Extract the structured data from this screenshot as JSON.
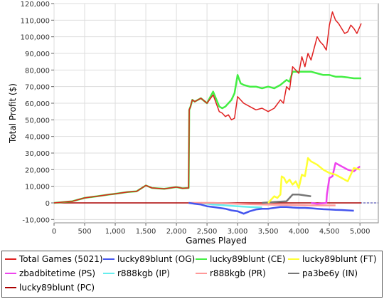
{
  "chart_data": {
    "type": "line",
    "title": "",
    "xlabel": "Games Played",
    "ylabel": "Total Profit ($)",
    "xlim": [
      0,
      5300
    ],
    "ylim": [
      -12000,
      120000
    ],
    "x_ticks": [
      0,
      500,
      1000,
      1500,
      2000,
      2500,
      3000,
      3500,
      4000,
      4500,
      5000
    ],
    "x_tick_labels": [
      "0",
      "500",
      "1,000",
      "1,500",
      "2,000",
      "2,500",
      "3,000",
      "3,500",
      "4,000",
      "4,500",
      "5,000"
    ],
    "y_ticks": [
      -10000,
      0,
      10000,
      20000,
      30000,
      40000,
      50000,
      60000,
      70000,
      80000,
      90000,
      100000,
      110000,
      120000
    ],
    "y_tick_labels": [
      "-10,000",
      "0",
      "10,000",
      "20,000",
      "30,000",
      "40,000",
      "50,000",
      "60,000",
      "70,000",
      "80,000",
      "90,000",
      "100,000",
      "110,000",
      "120,000"
    ],
    "grid": true,
    "zero_line_color": "#3333aa",
    "legend_position": "bottom",
    "series": [
      {
        "name": "Total Games (5021)",
        "color": "#e02020",
        "width": 1,
        "x": [
          0,
          300,
          500,
          700,
          900,
          1000,
          1200,
          1350,
          1500,
          1600,
          1800,
          2000,
          2100,
          2200,
          2210,
          2230,
          2260,
          2300,
          2400,
          2500,
          2600,
          2700,
          2750,
          2800,
          2850,
          2900,
          2950,
          3000,
          3100,
          3200,
          3300,
          3400,
          3500,
          3600,
          3700,
          3750,
          3800,
          3850,
          3900,
          4000,
          4050,
          4100,
          4150,
          4200,
          4250,
          4300,
          4350,
          4400,
          4450,
          4500,
          4550,
          4600,
          4650,
          4700,
          4750,
          4800,
          4850,
          4900,
          4950,
          5021
        ],
        "values": [
          0,
          1000,
          3000,
          4000,
          5000,
          5500,
          6500,
          7000,
          10500,
          9000,
          8500,
          9500,
          8800,
          9000,
          56000,
          58000,
          62000,
          61000,
          63000,
          60000,
          65000,
          55000,
          54000,
          52000,
          53000,
          50000,
          51000,
          64000,
          60000,
          58000,
          56000,
          57000,
          55000,
          57000,
          62000,
          60000,
          70000,
          68000,
          82000,
          78000,
          88000,
          82000,
          90000,
          86000,
          93000,
          100000,
          97000,
          95000,
          92000,
          107000,
          115000,
          110000,
          108000,
          105000,
          102000,
          103000,
          107000,
          105000,
          102000,
          108000
        ]
      },
      {
        "name": "lucky89blunt (OG)",
        "color": "#4455ee",
        "width": 2,
        "x": [
          2200,
          2300,
          2400,
          2500,
          2600,
          2700,
          2800,
          2900,
          3000,
          3100,
          3200,
          3300,
          3400,
          3500,
          3600,
          3700,
          3800,
          3900,
          4000,
          4100,
          4200,
          4300,
          4400,
          4500,
          4600,
          4700,
          4800,
          4900
        ],
        "values": [
          0,
          -500,
          -1000,
          -2000,
          -2500,
          -3000,
          -3500,
          -4500,
          -5000,
          -6500,
          -5000,
          -4000,
          -3500,
          -3500,
          -3000,
          -2500,
          -2500,
          -2800,
          -3000,
          -3000,
          -3200,
          -3500,
          -3800,
          -4000,
          -4200,
          -4300,
          -4500,
          -4700
        ]
      },
      {
        "name": "lucky89blunt (CE)",
        "color": "#44ee44",
        "width": 2,
        "x": [
          0,
          300,
          500,
          700,
          900,
          1000,
          1200,
          1350,
          1500,
          1600,
          1800,
          2000,
          2100,
          2200,
          2210,
          2230,
          2260,
          2300,
          2400,
          2500,
          2600,
          2700,
          2750,
          2800,
          2850,
          2900,
          2950,
          3000,
          3050,
          3100,
          3200,
          3300,
          3400,
          3500,
          3600,
          3700,
          3800,
          3850,
          3900,
          4000,
          4100,
          4200,
          4300,
          4400,
          4500,
          4600,
          4700,
          4800,
          4900,
          5021
        ],
        "values": [
          0,
          1000,
          3000,
          4000,
          5000,
          5500,
          6500,
          7000,
          10500,
          9000,
          8500,
          9500,
          8800,
          9000,
          56000,
          58000,
          62000,
          61000,
          63000,
          60000,
          67000,
          58000,
          57000,
          58000,
          60000,
          62000,
          66000,
          77000,
          72000,
          71000,
          70000,
          70000,
          69000,
          70000,
          69000,
          71000,
          74000,
          73000,
          79000,
          79000,
          79000,
          79000,
          78000,
          77000,
          77000,
          76000,
          76000,
          75500,
          75000,
          75000
        ]
      },
      {
        "name": "lucky89blunt (FT)",
        "color": "#ffff33",
        "width": 2,
        "x": [
          3500,
          3550,
          3600,
          3650,
          3700,
          3720,
          3760,
          3800,
          3850,
          3900,
          3950,
          4000,
          4050,
          4100,
          4150,
          4200,
          4300,
          4400,
          4500,
          4600,
          4700,
          4800,
          4900,
          5000
        ],
        "values": [
          0,
          2000,
          4000,
          3000,
          5000,
          16000,
          15000,
          12000,
          14000,
          11000,
          13000,
          9000,
          17000,
          16000,
          27000,
          25000,
          23000,
          20000,
          18000,
          17000,
          15000,
          13000,
          21000,
          20000
        ]
      },
      {
        "name": "zbadbitetime (PS)",
        "color": "#ee44ee",
        "width": 2,
        "x": [
          4200,
          4300,
          4400,
          4450,
          4460,
          4500,
          4550,
          4600,
          4700,
          4800,
          4900,
          5000
        ],
        "values": [
          0,
          -500,
          -200,
          0,
          5000,
          15000,
          16000,
          24000,
          22000,
          20000,
          19000,
          22000
        ]
      },
      {
        "name": "r888kgb (IP)",
        "color": "#66eeee",
        "width": 2,
        "x": [
          2400,
          2600,
          2800,
          3000,
          3200,
          3400
        ],
        "values": [
          0,
          -1000,
          -1500,
          -2000,
          -2500,
          -2800
        ]
      },
      {
        "name": "r888kgb (PR)",
        "color": "#ff9999",
        "width": 2,
        "x": [
          2200,
          2600,
          3000,
          3400,
          3800,
          4200,
          4600
        ],
        "values": [
          0,
          0,
          -500,
          -1000,
          -1200,
          -1500,
          -1500
        ]
      },
      {
        "name": "pa3be6y (IN)",
        "color": "#777777",
        "width": 2,
        "x": [
          3400,
          3600,
          3800,
          3850,
          3900,
          4000,
          4100,
          4200
        ],
        "values": [
          0,
          500,
          1000,
          3000,
          5000,
          5000,
          4500,
          4000
        ]
      },
      {
        "name": "lucky89blunt (PC)",
        "color": "#aa0000",
        "width": 1,
        "x": [
          0,
          5021
        ],
        "values": [
          0,
          0
        ]
      }
    ]
  }
}
